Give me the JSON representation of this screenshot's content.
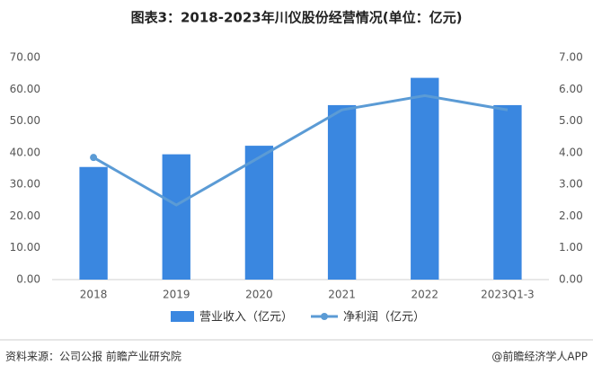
{
  "chart_data": {
    "type": "bar-line",
    "title": "图表3：2018-2023年川仪股份经营情况(单位：亿元)",
    "categories": [
      "2018",
      "2019",
      "2020",
      "2021",
      "2022",
      "2023Q1-3"
    ],
    "series": [
      {
        "name": "营业收入（亿元）",
        "type": "bar",
        "color": "#3a87e0",
        "values": [
          35.5,
          39.5,
          42.2,
          55.0,
          63.6,
          55.0
        ]
      },
      {
        "name": "净利润（亿元）",
        "type": "line",
        "axis": "y2",
        "color": "#5b9bd5",
        "values": [
          3.85,
          2.35,
          3.85,
          5.35,
          5.8,
          5.35
        ]
      }
    ],
    "ylim": [
      0,
      70
    ],
    "yticks": [
      {
        "value": 0,
        "label": "0.00"
      },
      {
        "value": 10,
        "label": "10.00"
      },
      {
        "value": 20,
        "label": "20.00"
      },
      {
        "value": 30,
        "label": "30.00"
      },
      {
        "value": 40,
        "label": "40.00"
      },
      {
        "value": 50,
        "label": "50.00"
      },
      {
        "value": 60,
        "label": "60.00"
      },
      {
        "value": 70,
        "label": "70.00"
      }
    ],
    "y2lim": [
      0,
      7
    ],
    "y2ticks": [
      {
        "value": 0,
        "label": "0.00"
      },
      {
        "value": 1,
        "label": "1.00"
      },
      {
        "value": 2,
        "label": "2.00"
      },
      {
        "value": 3,
        "label": "3.00"
      },
      {
        "value": 4,
        "label": "4.00"
      },
      {
        "value": 5,
        "label": "5.00"
      },
      {
        "value": 6,
        "label": "6.00"
      },
      {
        "value": 7,
        "label": "7.00"
      }
    ],
    "grid": false,
    "source": "资料来源：公司公报 前瞻产业研究院",
    "credit": "@前瞻经济学人APP"
  }
}
